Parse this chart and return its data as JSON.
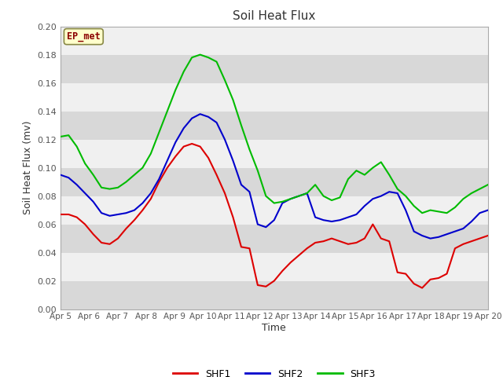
{
  "title": "Soil Heat Flux",
  "xlabel": "Time",
  "ylabel": "Soil Heat Flux (mv)",
  "ylim": [
    0.0,
    0.2
  ],
  "yticks": [
    0.0,
    0.02,
    0.04,
    0.06,
    0.08,
    0.1,
    0.12,
    0.14,
    0.16,
    0.18,
    0.2
  ],
  "xtick_labels": [
    "Apr 5",
    "Apr 6",
    "Apr 7",
    "Apr 8",
    "Apr 9",
    "Apr 10",
    "Apr 11",
    "Apr 12",
    "Apr 13",
    "Apr 14",
    "Apr 15",
    "Apr 16",
    "Apr 17",
    "Apr 18",
    "Apr 19",
    "Apr 20"
  ],
  "annotation_text": "EP_met",
  "annotation_color": "#8B0000",
  "annotation_bg": "#ffffcc",
  "fig_bg": "#ffffff",
  "stripe_dark": "#d8d8d8",
  "stripe_light": "#f0f0f0",
  "shf1_color": "#dd0000",
  "shf2_color": "#0000cc",
  "shf3_color": "#00bb00",
  "shf1": [
    0.067,
    0.067,
    0.065,
    0.06,
    0.053,
    0.047,
    0.046,
    0.05,
    0.057,
    0.063,
    0.07,
    0.078,
    0.09,
    0.1,
    0.108,
    0.115,
    0.117,
    0.115,
    0.107,
    0.095,
    0.082,
    0.065,
    0.044,
    0.043,
    0.017,
    0.016,
    0.02,
    0.027,
    0.033,
    0.038,
    0.043,
    0.047,
    0.048,
    0.05,
    0.048,
    0.046,
    0.047,
    0.05,
    0.06,
    0.05,
    0.048,
    0.026,
    0.025,
    0.018,
    0.015,
    0.021,
    0.022,
    0.025,
    0.043,
    0.046,
    0.048,
    0.05,
    0.052
  ],
  "shf2": [
    0.095,
    0.093,
    0.088,
    0.082,
    0.076,
    0.068,
    0.066,
    0.067,
    0.068,
    0.07,
    0.075,
    0.082,
    0.092,
    0.105,
    0.118,
    0.128,
    0.135,
    0.138,
    0.136,
    0.132,
    0.12,
    0.105,
    0.088,
    0.083,
    0.06,
    0.058,
    0.063,
    0.075,
    0.078,
    0.08,
    0.082,
    0.065,
    0.063,
    0.062,
    0.063,
    0.065,
    0.067,
    0.073,
    0.078,
    0.08,
    0.083,
    0.082,
    0.07,
    0.055,
    0.052,
    0.05,
    0.051,
    0.053,
    0.055,
    0.057,
    0.062,
    0.068,
    0.07
  ],
  "shf3": [
    0.122,
    0.123,
    0.115,
    0.103,
    0.095,
    0.086,
    0.085,
    0.086,
    0.09,
    0.095,
    0.1,
    0.11,
    0.125,
    0.14,
    0.155,
    0.168,
    0.178,
    0.18,
    0.178,
    0.175,
    0.162,
    0.148,
    0.13,
    0.113,
    0.098,
    0.08,
    0.075,
    0.076,
    0.078,
    0.08,
    0.082,
    0.088,
    0.08,
    0.077,
    0.079,
    0.092,
    0.098,
    0.095,
    0.1,
    0.104,
    0.095,
    0.085,
    0.08,
    0.073,
    0.068,
    0.07,
    0.069,
    0.068,
    0.072,
    0.078,
    0.082,
    0.085,
    0.088
  ],
  "legend_entries": [
    "SHF1",
    "SHF2",
    "SHF3"
  ]
}
